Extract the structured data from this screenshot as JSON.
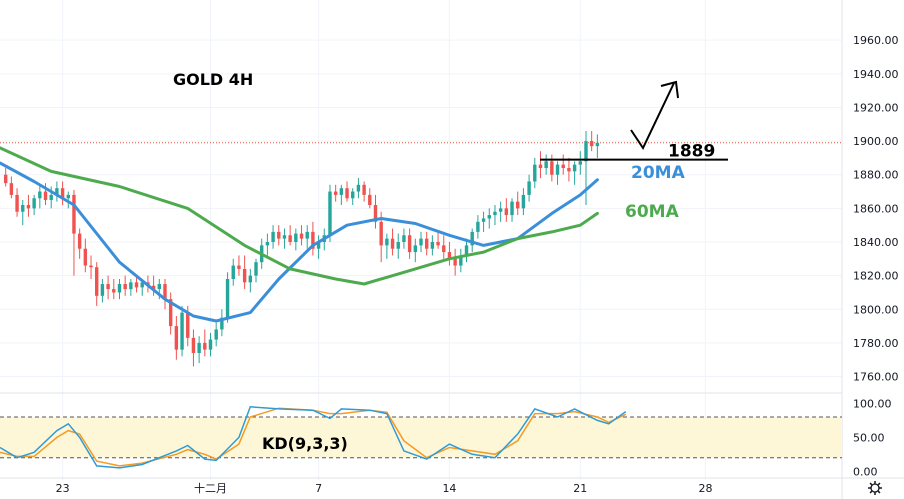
{
  "chart_data": {
    "type": "candlestick",
    "title": "GOLD 4H",
    "price_axis": {
      "ticks": [
        "1960.00",
        "1940.00",
        "1920.00",
        "1900.00",
        "1880.00",
        "1860.00",
        "1840.00",
        "1820.00",
        "1800.00",
        "1780.00",
        "1760.00"
      ],
      "ylim": [
        1752,
        1972
      ]
    },
    "osc_axis": {
      "ticks": [
        "100.00",
        "50.00",
        "0.00"
      ],
      "ylim": [
        -4,
        108
      ],
      "bands": [
        20,
        80
      ]
    },
    "x_ticks": [
      {
        "label": "23",
        "i": 10
      },
      {
        "label": "十二月",
        "i": 36
      },
      {
        "label": "7",
        "i": 55
      },
      {
        "label": "14",
        "i": 78
      },
      {
        "label": "21",
        "i": 101
      },
      {
        "label": "28",
        "i": 123
      }
    ],
    "x_range": [
      -1,
      147
    ],
    "current_price": 1899,
    "candles": [
      [
        1880,
        1884,
        1873,
        1875
      ],
      [
        1875,
        1879,
        1866,
        1868
      ],
      [
        1868,
        1872,
        1855,
        1858
      ],
      [
        1858,
        1865,
        1850,
        1862
      ],
      [
        1862,
        1868,
        1855,
        1860
      ],
      [
        1860,
        1868,
        1856,
        1866
      ],
      [
        1866,
        1874,
        1860,
        1870
      ],
      [
        1870,
        1875,
        1862,
        1865
      ],
      [
        1865,
        1873,
        1860,
        1868
      ],
      [
        1868,
        1876,
        1864,
        1872
      ],
      [
        1872,
        1876,
        1862,
        1866
      ],
      [
        1866,
        1870,
        1860,
        1868
      ],
      [
        1868,
        1871,
        1820,
        1845
      ],
      [
        1845,
        1848,
        1830,
        1836
      ],
      [
        1836,
        1842,
        1822,
        1826
      ],
      [
        1826,
        1832,
        1818,
        1825
      ],
      [
        1825,
        1828,
        1802,
        1808
      ],
      [
        1808,
        1818,
        1804,
        1815
      ],
      [
        1815,
        1820,
        1806,
        1812
      ],
      [
        1812,
        1818,
        1806,
        1810
      ],
      [
        1810,
        1818,
        1806,
        1815
      ],
      [
        1815,
        1820,
        1808,
        1812
      ],
      [
        1812,
        1818,
        1808,
        1816
      ],
      [
        1816,
        1820,
        1810,
        1813
      ],
      [
        1813,
        1818,
        1808,
        1816
      ],
      [
        1816,
        1820,
        1810,
        1814
      ],
      [
        1814,
        1820,
        1808,
        1812
      ],
      [
        1812,
        1818,
        1806,
        1815
      ],
      [
        1815,
        1818,
        1800,
        1806
      ],
      [
        1806,
        1810,
        1785,
        1790
      ],
      [
        1790,
        1796,
        1770,
        1776
      ],
      [
        1776,
        1802,
        1772,
        1798
      ],
      [
        1798,
        1802,
        1778,
        1783
      ],
      [
        1783,
        1788,
        1766,
        1774
      ],
      [
        1774,
        1784,
        1768,
        1780
      ],
      [
        1780,
        1788,
        1772,
        1776
      ],
      [
        1776,
        1786,
        1772,
        1782
      ],
      [
        1782,
        1792,
        1778,
        1788
      ],
      [
        1788,
        1800,
        1784,
        1795
      ],
      [
        1795,
        1822,
        1792,
        1818
      ],
      [
        1818,
        1830,
        1814,
        1826
      ],
      [
        1826,
        1832,
        1820,
        1824
      ],
      [
        1824,
        1832,
        1812,
        1816
      ],
      [
        1816,
        1824,
        1810,
        1820
      ],
      [
        1820,
        1830,
        1816,
        1828
      ],
      [
        1828,
        1842,
        1824,
        1838
      ],
      [
        1838,
        1845,
        1832,
        1840
      ],
      [
        1840,
        1850,
        1836,
        1846
      ],
      [
        1846,
        1850,
        1838,
        1842
      ],
      [
        1842,
        1848,
        1836,
        1844
      ],
      [
        1844,
        1850,
        1838,
        1840
      ],
      [
        1840,
        1848,
        1835,
        1845
      ],
      [
        1845,
        1850,
        1838,
        1842
      ],
      [
        1842,
        1850,
        1836,
        1846
      ],
      [
        1846,
        1852,
        1832,
        1836
      ],
      [
        1836,
        1844,
        1830,
        1840
      ],
      [
        1840,
        1848,
        1835,
        1844
      ],
      [
        1844,
        1874,
        1840,
        1870
      ],
      [
        1870,
        1874,
        1864,
        1868
      ],
      [
        1868,
        1874,
        1862,
        1872
      ],
      [
        1872,
        1876,
        1864,
        1866
      ],
      [
        1866,
        1872,
        1862,
        1870
      ],
      [
        1870,
        1878,
        1866,
        1874
      ],
      [
        1874,
        1876,
        1864,
        1868
      ],
      [
        1868,
        1872,
        1860,
        1862
      ],
      [
        1862,
        1868,
        1848,
        1852
      ],
      [
        1852,
        1858,
        1828,
        1838
      ],
      [
        1838,
        1845,
        1830,
        1842
      ],
      [
        1842,
        1848,
        1832,
        1836
      ],
      [
        1836,
        1845,
        1830,
        1840
      ],
      [
        1840,
        1848,
        1836,
        1844
      ],
      [
        1844,
        1848,
        1830,
        1834
      ],
      [
        1834,
        1842,
        1828,
        1838
      ],
      [
        1838,
        1846,
        1834,
        1842
      ],
      [
        1842,
        1846,
        1832,
        1836
      ],
      [
        1836,
        1844,
        1832,
        1840
      ],
      [
        1840,
        1846,
        1836,
        1838
      ],
      [
        1838,
        1844,
        1830,
        1834
      ],
      [
        1834,
        1840,
        1826,
        1830
      ],
      [
        1830,
        1836,
        1820,
        1826
      ],
      [
        1826,
        1836,
        1822,
        1832
      ],
      [
        1832,
        1842,
        1828,
        1838
      ],
      [
        1838,
        1848,
        1834,
        1846
      ],
      [
        1846,
        1856,
        1842,
        1852
      ],
      [
        1852,
        1858,
        1846,
        1854
      ],
      [
        1854,
        1860,
        1848,
        1856
      ],
      [
        1856,
        1862,
        1850,
        1858
      ],
      [
        1858,
        1864,
        1852,
        1860
      ],
      [
        1860,
        1866,
        1852,
        1856
      ],
      [
        1856,
        1866,
        1852,
        1864
      ],
      [
        1864,
        1870,
        1856,
        1860
      ],
      [
        1860,
        1872,
        1856,
        1868
      ],
      [
        1868,
        1880,
        1864,
        1876
      ],
      [
        1876,
        1890,
        1872,
        1886
      ],
      [
        1886,
        1894,
        1878,
        1884
      ],
      [
        1884,
        1892,
        1880,
        1888
      ],
      [
        1888,
        1892,
        1876,
        1880
      ],
      [
        1880,
        1888,
        1874,
        1886
      ],
      [
        1886,
        1892,
        1880,
        1884
      ],
      [
        1884,
        1890,
        1876,
        1882
      ],
      [
        1882,
        1888,
        1874,
        1886
      ],
      [
        1886,
        1894,
        1880,
        1888
      ],
      [
        1888,
        1906,
        1862,
        1900
      ],
      [
        1900,
        1906,
        1894,
        1897
      ],
      [
        1897,
        1904,
        1890,
        1899
      ]
    ],
    "series": [
      {
        "name": "20MA",
        "color": "#3b8fd9",
        "points": [
          [
            -1,
            1887
          ],
          [
            5,
            1876
          ],
          [
            12,
            1862
          ],
          [
            20,
            1828
          ],
          [
            28,
            1806
          ],
          [
            33,
            1796
          ],
          [
            37,
            1793
          ],
          [
            43,
            1798
          ],
          [
            48,
            1818
          ],
          [
            54,
            1838
          ],
          [
            60,
            1850
          ],
          [
            66,
            1854
          ],
          [
            72,
            1851
          ],
          [
            78,
            1844
          ],
          [
            84,
            1838
          ],
          [
            90,
            1842
          ],
          [
            96,
            1857
          ],
          [
            101,
            1868
          ],
          [
            104,
            1877
          ]
        ]
      },
      {
        "name": "60MA",
        "color": "#4daa4d",
        "points": [
          [
            -1,
            1896
          ],
          [
            8,
            1882
          ],
          [
            20,
            1873
          ],
          [
            32,
            1860
          ],
          [
            42,
            1838
          ],
          [
            50,
            1824
          ],
          [
            58,
            1818
          ],
          [
            63,
            1815
          ],
          [
            70,
            1822
          ],
          [
            78,
            1830
          ],
          [
            84,
            1834
          ],
          [
            90,
            1842
          ],
          [
            96,
            1846
          ],
          [
            101,
            1850
          ],
          [
            104,
            1857
          ]
        ]
      }
    ],
    "oscillator": {
      "name": "KD(9,3,3)",
      "k": [
        [
          -1,
          35
        ],
        [
          2,
          20
        ],
        [
          5,
          28
        ],
        [
          9,
          60
        ],
        [
          11,
          70
        ],
        [
          13,
          50
        ],
        [
          16,
          8
        ],
        [
          20,
          5
        ],
        [
          24,
          10
        ],
        [
          30,
          30
        ],
        [
          32,
          38
        ],
        [
          35,
          18
        ],
        [
          37,
          16
        ],
        [
          41,
          50
        ],
        [
          43,
          95
        ],
        [
          48,
          92
        ],
        [
          54,
          90
        ],
        [
          57,
          78
        ],
        [
          59,
          92
        ],
        [
          64,
          90
        ],
        [
          67,
          85
        ],
        [
          70,
          30
        ],
        [
          74,
          18
        ],
        [
          78,
          40
        ],
        [
          82,
          25
        ],
        [
          86,
          20
        ],
        [
          90,
          55
        ],
        [
          93,
          92
        ],
        [
          97,
          80
        ],
        [
          100,
          92
        ],
        [
          104,
          75
        ],
        [
          106,
          70
        ],
        [
          109,
          88
        ]
      ],
      "d": [
        [
          -1,
          28
        ],
        [
          2,
          22
        ],
        [
          5,
          22
        ],
        [
          9,
          50
        ],
        [
          11,
          60
        ],
        [
          13,
          55
        ],
        [
          16,
          15
        ],
        [
          20,
          8
        ],
        [
          24,
          12
        ],
        [
          30,
          25
        ],
        [
          32,
          32
        ],
        [
          35,
          25
        ],
        [
          37,
          18
        ],
        [
          41,
          40
        ],
        [
          43,
          80
        ],
        [
          48,
          93
        ],
        [
          54,
          90
        ],
        [
          57,
          85
        ],
        [
          59,
          85
        ],
        [
          64,
          90
        ],
        [
          67,
          87
        ],
        [
          70,
          45
        ],
        [
          74,
          20
        ],
        [
          78,
          35
        ],
        [
          82,
          30
        ],
        [
          86,
          25
        ],
        [
          90,
          45
        ],
        [
          93,
          85
        ],
        [
          97,
          85
        ],
        [
          100,
          88
        ],
        [
          104,
          80
        ],
        [
          106,
          72
        ],
        [
          109,
          84
        ]
      ]
    },
    "annotations": {
      "level_label": "1889",
      "level": 1889,
      "ma20_label": "20MA",
      "ma60_label": "60MA"
    }
  }
}
